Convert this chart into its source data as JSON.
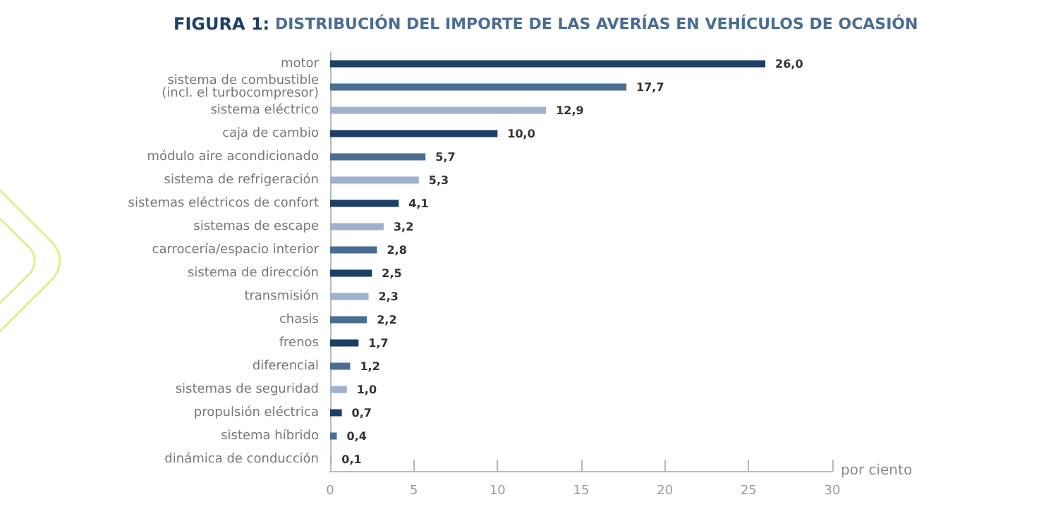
{
  "chart_data": {
    "type": "bar",
    "orientation": "horizontal",
    "title": "FIGURA 1: DISTRIBUCIÓN DEL IMPORTE DE LAS AVERÍAS EN VEHÍCULOS DE OCASIÓN",
    "xlabel": "por ciento",
    "categories": [
      "motor",
      "sistema de combustible\n(incl. el turbocompresor)",
      "sistema eléctrico",
      "caja de cambio",
      "módulo aire acondicionado",
      "sistema de refrigeración",
      "sistemas eléctricos de confort",
      "sistemas de escape",
      "carrocería/espacio interior",
      "sistema de dirección",
      "transmisión",
      "chasis",
      "frenos",
      "diferencial",
      "sistemas de seguridad",
      "propulsión eléctrica",
      "sistema híbrido",
      "dinámica de conducción"
    ],
    "values": [
      26.0,
      17.7,
      12.9,
      10.0,
      5.7,
      5.3,
      4.1,
      3.2,
      2.8,
      2.5,
      2.3,
      2.2,
      1.7,
      1.2,
      1.0,
      0.7,
      0.4,
      0.1
    ],
    "value_labels": [
      "26,0",
      "17,7",
      "12,9",
      "10,0",
      "5,7",
      "5,3",
      "4,1",
      "3,2",
      "2,8",
      "2,5",
      "2,3",
      "2,2",
      "1,7",
      "1,2",
      "1,0",
      "0,7",
      "0,4",
      "0,1"
    ],
    "colors": [
      "#1c3f66",
      "#4a6d93",
      "#9fb1cd",
      "#1c3f66",
      "#4a6d93",
      "#9fb1cd",
      "#1c3f66",
      "#9fb1cd",
      "#4a6d93",
      "#1c3f66",
      "#9fb1cd",
      "#4a6d93",
      "#1c3f66",
      "#4a6d93",
      "#9fb1cd",
      "#1c3f66",
      "#4a6d93",
      "#9fb1cd"
    ],
    "xlim": [
      0,
      30
    ],
    "xticks": [
      0,
      5,
      10,
      15,
      20,
      25,
      30
    ],
    "grid": false
  }
}
